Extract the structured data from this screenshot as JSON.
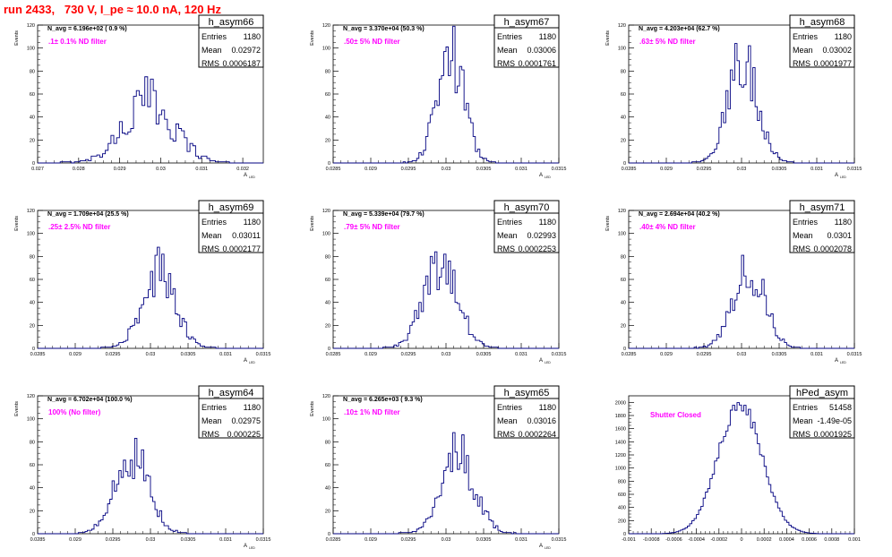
{
  "page": {
    "title": "run 2433,   730 V, I_pe ≈ 10.0 nA, 120 Hz",
    "title_color": "#ff0000",
    "hist_color": "#000080",
    "filter_color": "#ff00ff"
  },
  "chart_data": [
    {
      "type": "histogram",
      "name": "h_asym66",
      "entries": "1180",
      "mean": "0.02972",
      "rms": "0.0006187",
      "navg": "N_avg = 6.196e+02 ( 0.9 %)",
      "filter": ".1± 0.1% ND filter",
      "ylabel": "Events",
      "xlabel": "A",
      "xlim": [
        0.027,
        0.0325
      ],
      "ylim": [
        0,
        120
      ],
      "xticks": [
        0.027,
        0.028,
        0.029,
        0.03,
        0.031,
        0.032
      ],
      "xtick_labels": [
        "0.027",
        "0.028",
        "0.029",
        "0.03",
        "0.031",
        "0.032"
      ],
      "yticks": [
        0,
        20,
        40,
        60,
        80,
        100,
        120
      ],
      "mean_value": 0.02972,
      "rms_value": 0.0006187,
      "peak": 53,
      "bins": 80
    },
    {
      "type": "histogram",
      "name": "h_asym67",
      "entries": "1180",
      "mean": "0.03006",
      "rms": "0.0001761",
      "navg": "N_avg = 3.370e+04 (50.3 %)",
      "filter": ".50± 5% ND filter",
      "ylabel": "Events",
      "xlabel": "A",
      "xlim": [
        0.0285,
        0.0315
      ],
      "ylim": [
        0,
        120
      ],
      "xticks": [
        0.0285,
        0.029,
        0.0295,
        0.03,
        0.0305,
        0.031,
        0.0315
      ],
      "xtick_labels": [
        "0.0285",
        "0.029",
        "0.0295",
        "0.03",
        "0.0305",
        "0.031",
        "0.0315"
      ],
      "yticks": [
        0,
        20,
        40,
        60,
        80,
        100,
        120
      ],
      "mean_value": 0.03006,
      "rms_value": 0.0001761,
      "peak": 98,
      "bins": 100
    },
    {
      "type": "histogram",
      "name": "h_asym68",
      "entries": "1180",
      "mean": "0.03002",
      "rms": "0.0001977",
      "navg": "N_avg = 4.203e+04 (62.7 %)",
      "filter": ".63± 5% ND filter",
      "ylabel": "Events",
      "xlabel": "A",
      "xlim": [
        0.0285,
        0.0315
      ],
      "ylim": [
        0,
        120
      ],
      "xticks": [
        0.0285,
        0.029,
        0.0295,
        0.03,
        0.0305,
        0.031,
        0.0315
      ],
      "xtick_labels": [
        "0.0285",
        "0.029",
        "0.0295",
        "0.03",
        "0.0305",
        "0.031",
        "0.0315"
      ],
      "yticks": [
        0,
        20,
        40,
        60,
        80,
        100,
        120
      ],
      "mean_value": 0.03002,
      "rms_value": 0.0001977,
      "peak": 91,
      "bins": 100
    },
    {
      "type": "histogram",
      "name": "h_asym69",
      "entries": "1180",
      "mean": "0.03011",
      "rms": "0.0002177",
      "navg": "N_avg = 1.709e+04 (25.5 %)",
      "filter": ".25± 2.5% ND filter",
      "ylabel": "Events",
      "xlabel": "A",
      "xlim": [
        0.0285,
        0.0315
      ],
      "ylim": [
        0,
        120
      ],
      "xticks": [
        0.0285,
        0.029,
        0.0295,
        0.03,
        0.0305,
        0.031,
        0.0315
      ],
      "xtick_labels": [
        "0.0285",
        "0.029",
        "0.0295",
        "0.03",
        "0.0305",
        "0.031",
        "0.0315"
      ],
      "yticks": [
        0,
        20,
        40,
        60,
        80,
        100,
        120
      ],
      "mean_value": 0.03011,
      "rms_value": 0.0002177,
      "peak": 67,
      "bins": 100
    },
    {
      "type": "histogram",
      "name": "h_asym70",
      "entries": "1180",
      "mean": "0.02993",
      "rms": "0.0002253",
      "navg": "N_avg = 5.339e+04 (79.7 %)",
      "filter": ".79± 5% ND filter",
      "ylabel": "Events",
      "xlabel": "A",
      "xlim": [
        0.0285,
        0.0315
      ],
      "ylim": [
        0,
        120
      ],
      "xticks": [
        0.0285,
        0.029,
        0.0295,
        0.03,
        0.0305,
        0.031,
        0.0315
      ],
      "xtick_labels": [
        "0.0285",
        "0.029",
        "0.0295",
        "0.03",
        "0.0305",
        "0.031",
        "0.0315"
      ],
      "yticks": [
        0,
        20,
        40,
        60,
        80,
        100,
        120
      ],
      "mean_value": 0.02993,
      "rms_value": 0.0002253,
      "peak": 75,
      "bins": 100
    },
    {
      "type": "histogram",
      "name": "h_asym71",
      "entries": "1180",
      "mean": "0.0301",
      "rms": "0.0002078",
      "navg": "N_avg = 2.694e+04 (40.2 %)",
      "filter": ".40± 4% ND filter",
      "ylabel": "Events",
      "xlabel": "A",
      "xlim": [
        0.0285,
        0.0315
      ],
      "ylim": [
        0,
        120
      ],
      "xticks": [
        0.0285,
        0.029,
        0.0295,
        0.03,
        0.0305,
        0.031,
        0.0315
      ],
      "xtick_labels": [
        "0.0285",
        "0.029",
        "0.0295",
        "0.03",
        "0.0305",
        "0.031",
        "0.0315"
      ],
      "yticks": [
        0,
        20,
        40,
        60,
        80,
        100,
        120
      ],
      "mean_value": 0.0301,
      "rms_value": 0.0002078,
      "peak": 70,
      "bins": 100
    },
    {
      "type": "histogram",
      "name": "h_asym64",
      "entries": "1180",
      "mean": "0.02975",
      "rms": "0.000225",
      "navg": "N_avg = 6.702e+04 (100.0 %)",
      "filter": "100% (No filter)",
      "ylabel": "Events",
      "xlabel": "A",
      "xlim": [
        0.0285,
        0.0315
      ],
      "ylim": [
        0,
        120
      ],
      "xticks": [
        0.0285,
        0.029,
        0.0295,
        0.03,
        0.0305,
        0.031,
        0.0315
      ],
      "xtick_labels": [
        "0.0285",
        "0.029",
        "0.0295",
        "0.03",
        "0.0305",
        "0.031",
        "0.0315"
      ],
      "yticks": [
        0,
        20,
        40,
        60,
        80,
        100,
        120
      ],
      "mean_value": 0.02975,
      "rms_value": 0.000225,
      "peak": 69,
      "bins": 100
    },
    {
      "type": "histogram",
      "name": "h_asym65",
      "entries": "1180",
      "mean": "0.03016",
      "rms": "0.0002264",
      "navg": "N_avg = 6.265e+03 ( 9.3 %)",
      "filter": ".10± 1% ND filter",
      "ylabel": "Events",
      "xlabel": "A",
      "xlim": [
        0.0285,
        0.0315
      ],
      "ylim": [
        0,
        120
      ],
      "xticks": [
        0.0285,
        0.029,
        0.0295,
        0.03,
        0.0305,
        0.031,
        0.0315
      ],
      "xtick_labels": [
        "0.0285",
        "0.029",
        "0.0295",
        "0.03",
        "0.0305",
        "0.031",
        "0.0315"
      ],
      "yticks": [
        0,
        20,
        40,
        60,
        80,
        100,
        120
      ],
      "mean_value": 0.03016,
      "rms_value": 0.0002264,
      "peak": 70,
      "bins": 100
    },
    {
      "type": "histogram",
      "name": "hPed_asym",
      "entries": "51458",
      "mean": "-1.49e-05",
      "rms": "0.0001925",
      "navg": "",
      "filter": "Shutter Closed",
      "ylabel": "",
      "xlabel": "",
      "xlim": [
        -0.001,
        0.001
      ],
      "ylim": [
        0,
        2100
      ],
      "xticks": [
        -0.001,
        -0.0008,
        -0.0006,
        -0.0004,
        -0.0002,
        0,
        0.0002,
        0.0004,
        0.0006,
        0.0008,
        0.001
      ],
      "xtick_labels": [
        "-0.001",
        "-0.0008",
        "-0.0006",
        "-0.0004",
        "-0.0002",
        "0",
        "0.0002",
        "0.0004",
        "0.0006",
        "0.0008",
        "0.001"
      ],
      "yticks": [
        0,
        200,
        400,
        600,
        800,
        1000,
        1200,
        1400,
        1600,
        1800,
        2000
      ],
      "mean_value": -1.49e-05,
      "rms_value": 0.0001925,
      "peak": 1980,
      "bins": 100
    }
  ]
}
